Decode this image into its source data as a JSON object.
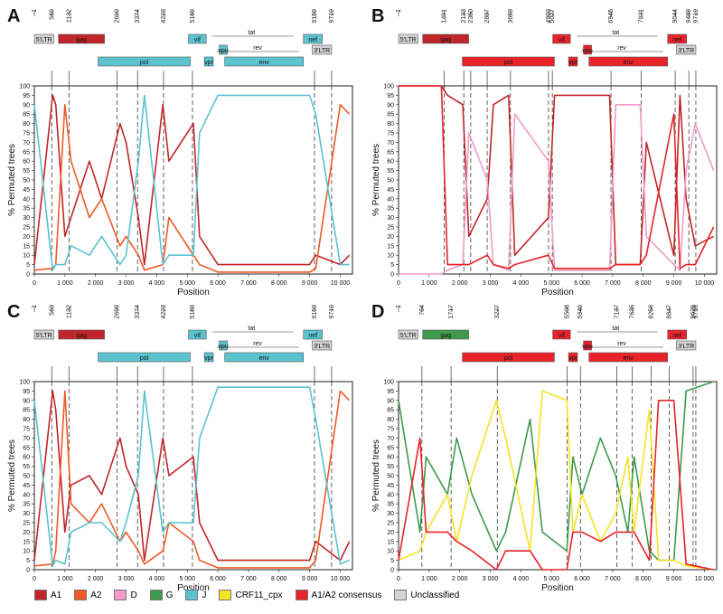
{
  "colors": {
    "A1": "#c0262b",
    "A2": "#ef5a27",
    "D": "#f29ac8",
    "G": "#3f9a4e",
    "J": "#5bc3cf",
    "CRF11_cpx": "#f4e425",
    "A1/A2 consensus": "#e8232a",
    "Unclassified": "#d3d3d3"
  },
  "legend": [
    {
      "key": "A1",
      "label": "A1"
    },
    {
      "key": "A2",
      "label": "A2"
    },
    {
      "key": "D",
      "label": "D"
    },
    {
      "key": "G",
      "label": "G"
    },
    {
      "key": "J",
      "label": "J"
    },
    {
      "key": "CRF11_cpx",
      "label": "CRF11_cpx"
    },
    {
      "key": "A1/A2 consensus",
      "label": "A1/A2 consensus"
    },
    {
      "key": "Unclassified",
      "label": "Unclassified"
    }
  ],
  "chart_data": [
    {
      "panel": "A",
      "type": "line",
      "xlabel": "Position",
      "ylabel": "% Permuted trees",
      "xlim": [
        0,
        10400
      ],
      "ylim": [
        0,
        100
      ],
      "xticks": [
        "0",
        "1 000",
        "2 000",
        "3 000",
        "4 000",
        "5 000",
        "6 000",
        "7 000",
        "8 000",
        "9 000",
        "10 000"
      ],
      "yticks": [
        "0",
        "5",
        "10",
        "15",
        "20",
        "25",
        "30",
        "35",
        "40",
        "45",
        "50",
        "55",
        "60",
        "65",
        "70",
        "75",
        "80",
        "85",
        "90",
        "95",
        "100"
      ],
      "breakpoints": [
        569,
        1132,
        2699,
        3374,
        4223,
        5169,
        9159,
        9719
      ],
      "breakpoint_labels": [
        "1",
        "569",
        "1132",
        "2699",
        "3374",
        "4223",
        "5169",
        "9159",
        "9719"
      ],
      "genome_labels": [
        "5'LTR",
        "gag",
        "pol",
        "vif",
        "vpr",
        "vpu",
        "tat",
        "rev",
        "env",
        "nef",
        "3'LTR"
      ],
      "series": [
        {
          "name": "A1",
          "color_key": "A1",
          "x": [
            0,
            600,
            700,
            1000,
            1200,
            1800,
            2200,
            2800,
            3000,
            3400,
            3600,
            4200,
            4400,
            5200,
            5400,
            6000,
            9000,
            9200,
            10000,
            10300
          ],
          "y": [
            5,
            95,
            90,
            20,
            30,
            60,
            40,
            80,
            70,
            30,
            5,
            90,
            60,
            80,
            20,
            5,
            5,
            10,
            5,
            10
          ]
        },
        {
          "name": "A2",
          "color_key": "A2",
          "x": [
            0,
            600,
            700,
            1000,
            1200,
            1800,
            2200,
            2800,
            3000,
            3400,
            3600,
            4200,
            4400,
            5200,
            5400,
            6000,
            9000,
            9200,
            10000,
            10300
          ],
          "y": [
            2,
            3,
            5,
            90,
            60,
            30,
            40,
            15,
            20,
            10,
            2,
            5,
            30,
            10,
            5,
            1,
            1,
            3,
            90,
            85
          ]
        },
        {
          "name": "J",
          "color_key": "J",
          "x": [
            0,
            600,
            700,
            1000,
            1200,
            1800,
            2200,
            2800,
            3000,
            3400,
            3600,
            4200,
            4400,
            5200,
            5400,
            6000,
            9000,
            9200,
            10000,
            10300
          ],
          "y": [
            90,
            2,
            5,
            5,
            15,
            10,
            20,
            5,
            10,
            60,
            95,
            5,
            10,
            10,
            75,
            95,
            95,
            85,
            5,
            5
          ]
        }
      ]
    },
    {
      "panel": "B",
      "type": "line",
      "xlabel": "Position",
      "ylabel": "% Permuted trees",
      "xlim": [
        0,
        10400
      ],
      "ylim": [
        0,
        100
      ],
      "xticks": [
        "0",
        "1 000",
        "2 000",
        "3 000",
        "4 000",
        "5 000",
        "6 000",
        "7 000",
        "8 000",
        "9 000",
        "10 000"
      ],
      "yticks": [
        "0",
        "5",
        "10",
        "15",
        "20",
        "25",
        "30",
        "35",
        "40",
        "45",
        "50",
        "55",
        "60",
        "65",
        "70",
        "75",
        "80",
        "85",
        "90",
        "95",
        "100"
      ],
      "breakpoints": [
        1491,
        2133,
        2360,
        2897,
        3659,
        4903,
        5027,
        6945,
        7931,
        9044,
        9489,
        9719
      ],
      "breakpoint_labels": [
        "1",
        "1491",
        "2133",
        "2360",
        "2897",
        "3659",
        "4903",
        "5027",
        "6945",
        "7931",
        "9044",
        "9489",
        "9719"
      ],
      "genome_labels": [
        "5'LTR",
        "gag",
        "pol",
        "vif",
        "vpr",
        "vpu",
        "tat",
        "rev",
        "env",
        "nef",
        "3'LTR"
      ],
      "series": [
        {
          "name": "A1",
          "color_key": "A1",
          "x": [
            0,
            1400,
            1600,
            2100,
            2300,
            2900,
            3100,
            3600,
            3800,
            4900,
            5100,
            6900,
            7100,
            7900,
            8100,
            9000,
            9200,
            9400,
            9700,
            10300
          ],
          "y": [
            100,
            100,
            95,
            90,
            20,
            40,
            90,
            95,
            10,
            30,
            95,
            95,
            5,
            5,
            70,
            10,
            95,
            40,
            15,
            20
          ]
        },
        {
          "name": "D",
          "color_key": "D",
          "x": [
            0,
            1400,
            1600,
            2100,
            2300,
            2900,
            3100,
            3600,
            3800,
            4900,
            5100,
            6900,
            7100,
            7900,
            8100,
            9000,
            9200,
            9400,
            9700,
            10300
          ],
          "y": [
            0,
            0,
            2,
            5,
            75,
            50,
            5,
            2,
            85,
            60,
            2,
            2,
            90,
            90,
            20,
            5,
            2,
            55,
            80,
            55
          ]
        },
        {
          "name": "A1/A2 consensus",
          "color_key": "A1/A2 consensus",
          "x": [
            0,
            1400,
            1600,
            2100,
            2300,
            2900,
            3100,
            3600,
            3800,
            4900,
            5100,
            6900,
            7100,
            7900,
            8100,
            9000,
            9200,
            9400,
            9700,
            10300
          ],
          "y": [
            100,
            100,
            5,
            5,
            5,
            10,
            5,
            3,
            5,
            10,
            3,
            3,
            5,
            5,
            10,
            85,
            3,
            5,
            5,
            25
          ]
        }
      ]
    },
    {
      "panel": "C",
      "type": "line",
      "xlabel": "Position",
      "ylabel": "% Permuted trees",
      "xlim": [
        0,
        10400
      ],
      "ylim": [
        0,
        100
      ],
      "xticks": [
        "0",
        "1 000",
        "2 000",
        "3 000",
        "4 000",
        "5 000",
        "6 000",
        "7 000",
        "8 000",
        "9 000",
        "10 000"
      ],
      "yticks": [
        "0",
        "5",
        "10",
        "15",
        "20",
        "25",
        "30",
        "35",
        "40",
        "45",
        "50",
        "55",
        "60",
        "65",
        "70",
        "75",
        "80",
        "85",
        "90",
        "95",
        "100"
      ],
      "breakpoints": [
        569,
        1132,
        2699,
        3374,
        4223,
        5169,
        9159,
        9719
      ],
      "breakpoint_labels": [
        "1",
        "569",
        "1132",
        "2699",
        "3374",
        "4223",
        "5169",
        "9159",
        "9719"
      ],
      "genome_labels": [
        "5'LTR",
        "gag",
        "pol",
        "vif",
        "vpr",
        "vpu",
        "tat",
        "rev",
        "env",
        "nef",
        "3'LTR"
      ],
      "series": [
        {
          "name": "A1",
          "color_key": "A1",
          "x": [
            0,
            600,
            700,
            1000,
            1200,
            1800,
            2200,
            2800,
            3000,
            3400,
            3600,
            4200,
            4400,
            5200,
            5400,
            6000,
            9000,
            9200,
            10000,
            10300
          ],
          "y": [
            5,
            95,
            85,
            20,
            45,
            50,
            40,
            70,
            55,
            40,
            5,
            70,
            50,
            60,
            25,
            5,
            5,
            15,
            5,
            15
          ]
        },
        {
          "name": "A2",
          "color_key": "A2",
          "x": [
            0,
            600,
            700,
            1000,
            1200,
            1800,
            2200,
            2800,
            3000,
            3400,
            3600,
            4200,
            4400,
            5200,
            5400,
            6000,
            9000,
            9200,
            10000,
            10300
          ],
          "y": [
            2,
            3,
            10,
            95,
            35,
            25,
            35,
            15,
            20,
            10,
            3,
            10,
            25,
            15,
            5,
            1,
            1,
            5,
            95,
            90
          ]
        },
        {
          "name": "J",
          "color_key": "J",
          "x": [
            0,
            600,
            700,
            1000,
            1200,
            1800,
            2200,
            2800,
            3000,
            3400,
            3600,
            4200,
            4400,
            5200,
            5400,
            6000,
            9000,
            9200,
            10000,
            10300
          ],
          "y": [
            90,
            2,
            5,
            3,
            20,
            25,
            25,
            15,
            25,
            50,
            95,
            20,
            25,
            25,
            70,
            97,
            97,
            80,
            3,
            5
          ]
        }
      ]
    },
    {
      "panel": "D",
      "type": "line",
      "xlabel": "Position",
      "ylabel": "% Permuted trees",
      "xlim": [
        0,
        10400
      ],
      "ylim": [
        0,
        100
      ],
      "xticks": [
        "0",
        "1 000",
        "2 000",
        "3 000",
        "4 000",
        "5 000",
        "6 000",
        "7 000",
        "8 000",
        "9 000",
        "10 000"
      ],
      "yticks": [
        "0",
        "5",
        "10",
        "15",
        "20",
        "25",
        "30",
        "35",
        "40",
        "45",
        "50",
        "55",
        "60",
        "65",
        "70",
        "75",
        "80",
        "85",
        "90",
        "95",
        "100"
      ],
      "breakpoints": [
        764,
        1717,
        3227,
        5508,
        5946,
        7137,
        7635,
        8258,
        8847,
        9629,
        9719
      ],
      "breakpoint_labels": [
        "1",
        "764",
        "1717",
        "3227",
        "5508",
        "5946",
        "7137",
        "7635",
        "8258",
        "8847",
        "9629",
        "9719"
      ],
      "genome_labels": [
        "5'LTR",
        "gag",
        "pol",
        "vif",
        "vpr",
        "vpu",
        "tat",
        "rev",
        "env",
        "nef",
        "3'LTR"
      ],
      "series": [
        {
          "name": "G",
          "color_key": "G",
          "x": [
            0,
            700,
            900,
            1600,
            1900,
            2400,
            3200,
            3500,
            4300,
            4700,
            5500,
            5700,
            6000,
            6600,
            7100,
            7500,
            7700,
            8200,
            8500,
            9000,
            9400,
            10300
          ],
          "y": [
            90,
            20,
            60,
            40,
            70,
            40,
            10,
            20,
            80,
            20,
            10,
            60,
            40,
            70,
            50,
            20,
            60,
            10,
            5,
            5,
            95,
            100
          ]
        },
        {
          "name": "CRF11_cpx",
          "color_key": "CRF11_cpx",
          "x": [
            0,
            700,
            900,
            1600,
            1900,
            2400,
            3200,
            3500,
            4300,
            4700,
            5500,
            5700,
            6000,
            6600,
            7100,
            7500,
            7700,
            8200,
            8500,
            9000,
            9400,
            10300
          ],
          "y": [
            5,
            10,
            20,
            40,
            15,
            50,
            90,
            70,
            10,
            95,
            90,
            20,
            40,
            15,
            30,
            60,
            20,
            85,
            5,
            5,
            2,
            0
          ]
        },
        {
          "name": "A1/A2 consensus",
          "color_key": "A1/A2 consensus",
          "x": [
            0,
            700,
            900,
            1600,
            1900,
            2400,
            3200,
            3500,
            4300,
            4700,
            5500,
            5700,
            6000,
            6600,
            7100,
            7500,
            7700,
            8200,
            8500,
            9000,
            9400,
            10300
          ],
          "y": [
            5,
            70,
            20,
            20,
            15,
            10,
            0,
            10,
            10,
            0,
            0,
            20,
            20,
            15,
            20,
            20,
            20,
            5,
            90,
            90,
            3,
            0
          ]
        }
      ]
    }
  ],
  "panels_text": [
    {
      "letter": "A"
    },
    {
      "letter": "B"
    },
    {
      "letter": "C"
    },
    {
      "letter": "D"
    }
  ]
}
